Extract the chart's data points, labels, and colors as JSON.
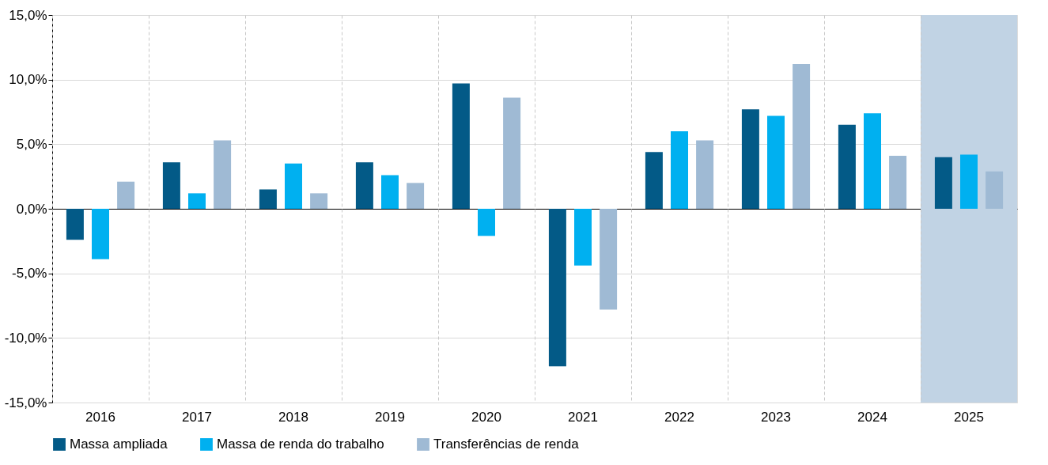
{
  "chart_data": {
    "type": "bar",
    "categories": [
      "2016",
      "2017",
      "2018",
      "2019",
      "2020",
      "2021",
      "2022",
      "2023",
      "2024",
      "2025"
    ],
    "series": [
      {
        "name": "Massa ampliada",
        "color": "#035a87",
        "values": [
          -2.4,
          3.6,
          1.5,
          3.6,
          9.7,
          -12.2,
          4.4,
          7.7,
          6.5,
          4.0
        ]
      },
      {
        "name": "Massa de renda do trabalho",
        "color": "#00b0f0",
        "values": [
          -3.9,
          1.2,
          3.5,
          2.6,
          -2.1,
          -4.4,
          6.0,
          7.2,
          7.4,
          4.2
        ]
      },
      {
        "name": "Transferências de renda",
        "color": "#9fbad4",
        "values": [
          2.1,
          5.3,
          1.2,
          2.0,
          8.6,
          -7.8,
          5.3,
          11.2,
          4.1,
          2.9
        ]
      }
    ],
    "ylim": [
      -15,
      15
    ],
    "yticks": [
      {
        "value": -15,
        "label": "-15,0%"
      },
      {
        "value": -10,
        "label": "-10,0%"
      },
      {
        "value": -5,
        "label": "-5,0%"
      },
      {
        "value": 0,
        "label": "0,0%"
      },
      {
        "value": 5,
        "label": "5,0%"
      },
      {
        "value": 10,
        "label": "10,0%"
      },
      {
        "value": 15,
        "label": "15,0%"
      }
    ],
    "bands": [
      {
        "axis": "x",
        "from": "2025",
        "to": "2025",
        "color": "#c1d3e4"
      }
    ],
    "grid": true,
    "legend": "bottom"
  }
}
